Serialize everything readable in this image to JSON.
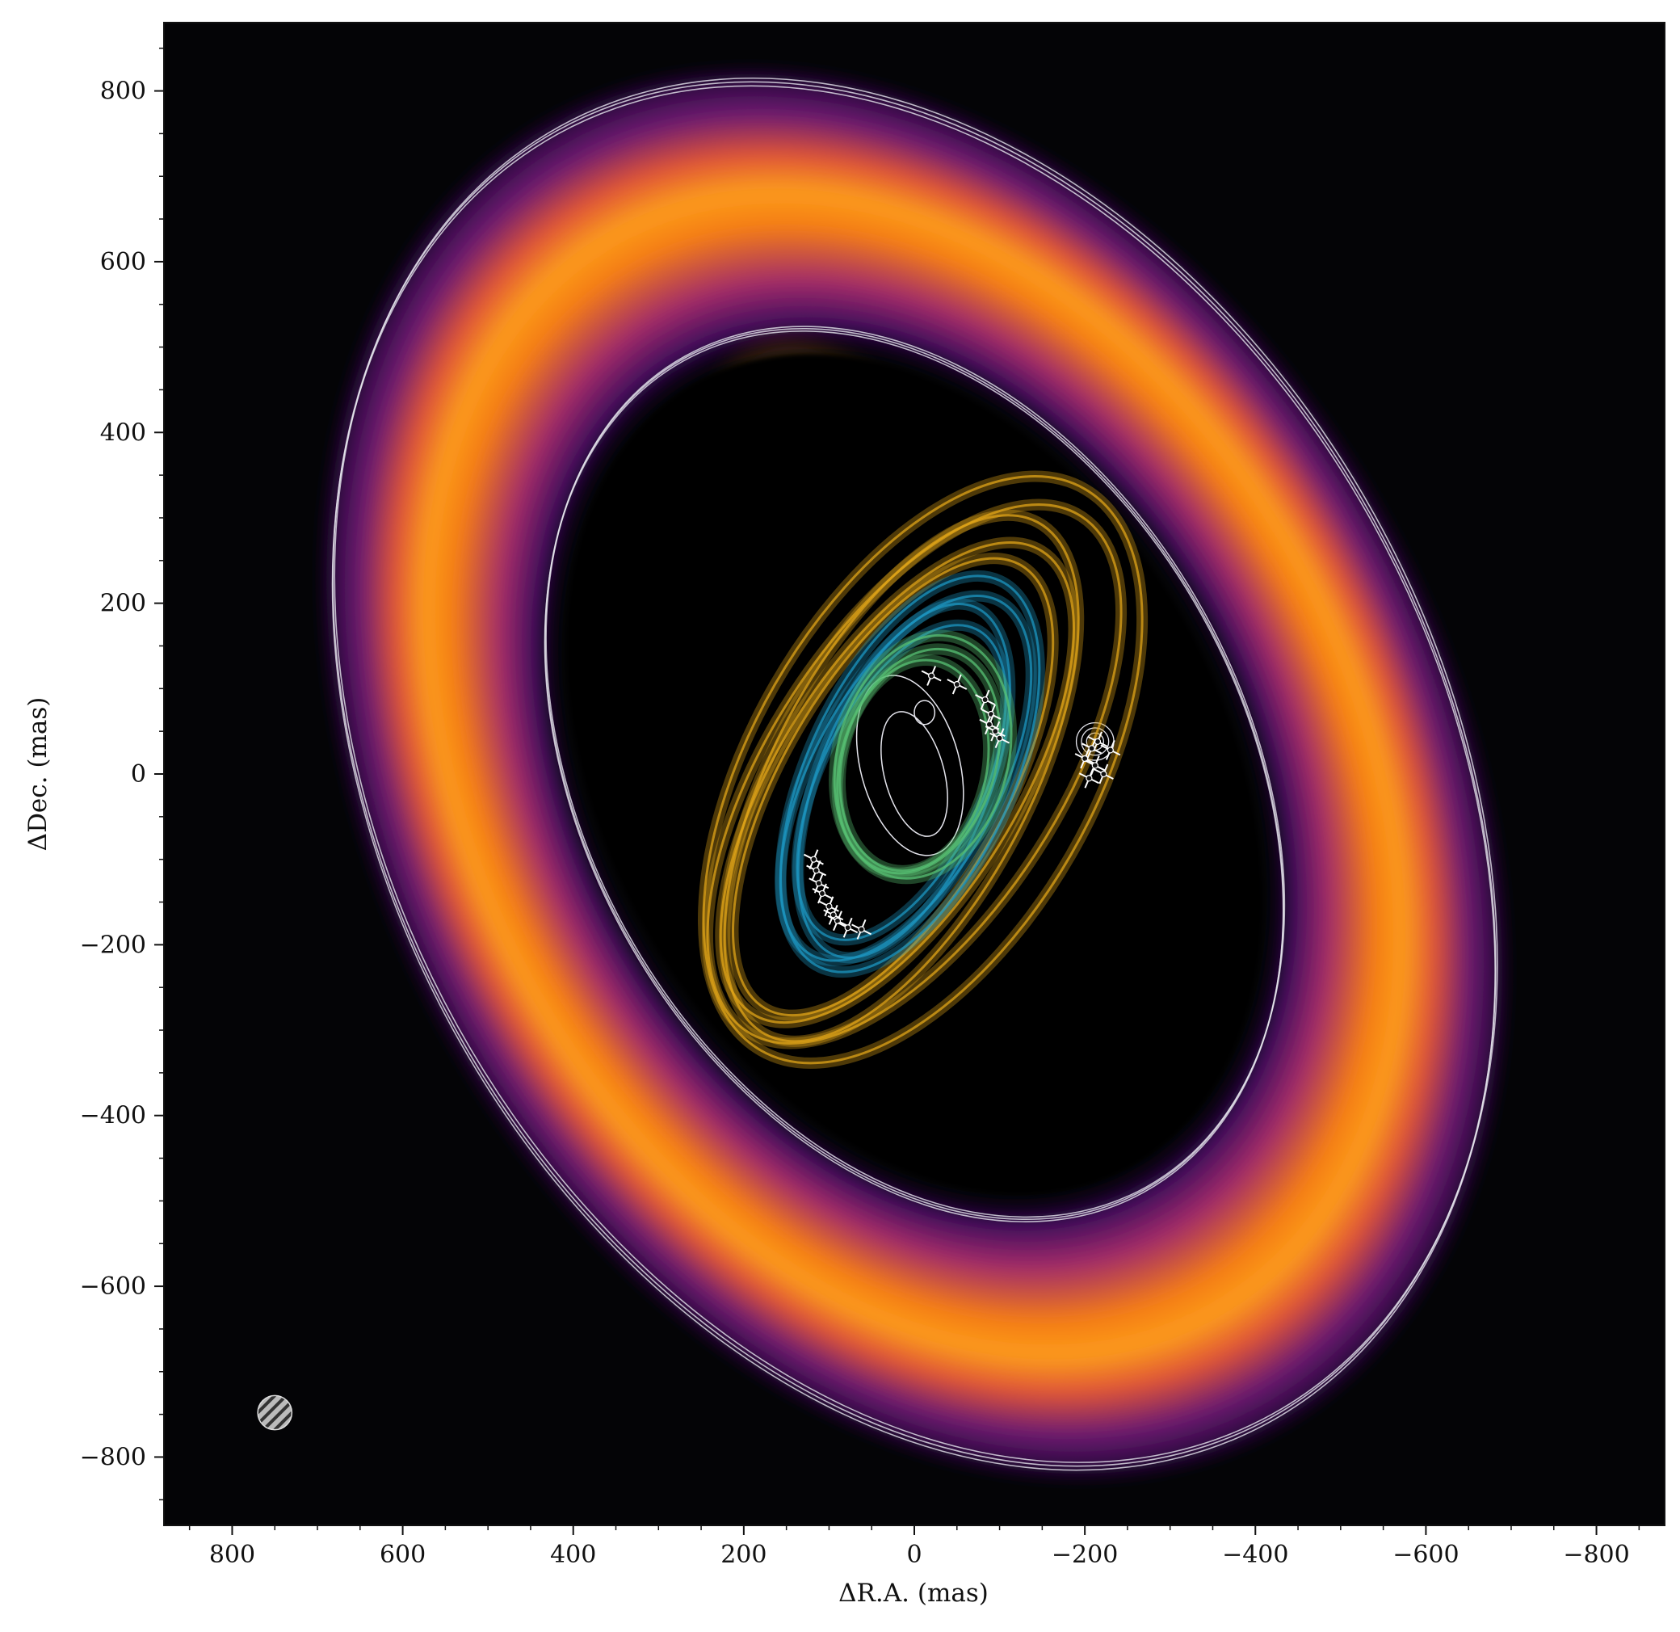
{
  "chart_data": {
    "type": "image",
    "xlabel": "ΔR.A. (mas)",
    "ylabel": "ΔDec. (mas)",
    "xlim": [
      880,
      -880
    ],
    "ylim": [
      -880,
      880
    ],
    "x_inverted": true,
    "grid": false,
    "xticks": [
      800,
      600,
      400,
      200,
      0,
      -200,
      -400,
      -600,
      -800
    ],
    "yticks": [
      800,
      600,
      400,
      200,
      0,
      -200,
      -400,
      -600,
      -800
    ],
    "xtick_labels": [
      "800",
      "600",
      "400",
      "200",
      "0",
      "−200",
      "−400",
      "−600",
      "−800"
    ],
    "ytick_labels": [
      "800",
      "600",
      "400",
      "200",
      "0",
      "−200",
      "−400",
      "−600",
      "−800"
    ],
    "colormap": "inferno",
    "colors": {
      "background": "#040406",
      "outer_orbit_bundle": "#e0a418",
      "middle_orbit_bundle": "#1c95c0",
      "inner_orbit_bundle": "#58c274",
      "contour": "#e6e6ee",
      "data_points": "#ffffff"
    },
    "disk_model": {
      "center": [
        0,
        0
      ],
      "position_angle_deg": 29,
      "ring_outer": {
        "semi_major": 875,
        "semi_minor": 625
      },
      "ring_brightness_peak": {
        "semi_major": 715,
        "semi_minor": 505
      },
      "ring_inner_edge": {
        "semi_major": 525,
        "semi_minor": 365
      }
    },
    "orbit_bundles": [
      {
        "color_key": "outer_orbit_bundle",
        "samples": [
          {
            "a": 380,
            "b": 200,
            "cx": -10,
            "cy": 5,
            "theta": 60
          },
          {
            "a": 360,
            "b": 170,
            "cx": 0,
            "cy": 0,
            "theta": 57
          },
          {
            "a": 340,
            "b": 150,
            "cx": 15,
            "cy": -5,
            "theta": 62
          },
          {
            "a": 320,
            "b": 140,
            "cx": 20,
            "cy": -10,
            "theta": 58
          },
          {
            "a": 300,
            "b": 130,
            "cx": 25,
            "cy": -15,
            "theta": 60
          }
        ]
      },
      {
        "color_key": "middle_orbit_bundle",
        "samples": [
          {
            "a": 250,
            "b": 120,
            "cx": 5,
            "cy": 0,
            "theta": 65
          },
          {
            "a": 235,
            "b": 110,
            "cx": 10,
            "cy": -5,
            "theta": 62
          },
          {
            "a": 220,
            "b": 100,
            "cx": 12,
            "cy": -8,
            "theta": 68
          },
          {
            "a": 200,
            "b": 95,
            "cx": 15,
            "cy": -10,
            "theta": 64
          }
        ]
      },
      {
        "color_key": "inner_orbit_bundle",
        "samples": [
          {
            "a": 145,
            "b": 100,
            "cx": -10,
            "cy": 20,
            "theta": 75
          },
          {
            "a": 135,
            "b": 90,
            "cx": -5,
            "cy": 15,
            "theta": 72
          },
          {
            "a": 125,
            "b": 85,
            "cx": 0,
            "cy": 10,
            "theta": 78
          }
        ]
      }
    ],
    "astrometry": [
      {
        "x": -20,
        "y": 115
      },
      {
        "x": -50,
        "y": 105
      },
      {
        "x": -83,
        "y": 87
      },
      {
        "x": -90,
        "y": 70
      },
      {
        "x": -88,
        "y": 58
      },
      {
        "x": -95,
        "y": 50
      },
      {
        "x": -100,
        "y": 42
      },
      {
        "x": -215,
        "y": 38
      },
      {
        "x": -208,
        "y": 30
      },
      {
        "x": -230,
        "y": 28
      },
      {
        "x": -200,
        "y": 18
      },
      {
        "x": -212,
        "y": 10
      },
      {
        "x": -222,
        "y": 0
      },
      {
        "x": -205,
        "y": -5
      },
      {
        "x": 118,
        "y": -100
      },
      {
        "x": 115,
        "y": -113
      },
      {
        "x": 112,
        "y": -128
      },
      {
        "x": 108,
        "y": -140
      },
      {
        "x": 100,
        "y": -155
      },
      {
        "x": 95,
        "y": -165
      },
      {
        "x": 90,
        "y": -172
      },
      {
        "x": 78,
        "y": -180
      },
      {
        "x": 62,
        "y": -182
      }
    ],
    "beam": {
      "x": 750,
      "y": -748,
      "radius": 20
    }
  }
}
